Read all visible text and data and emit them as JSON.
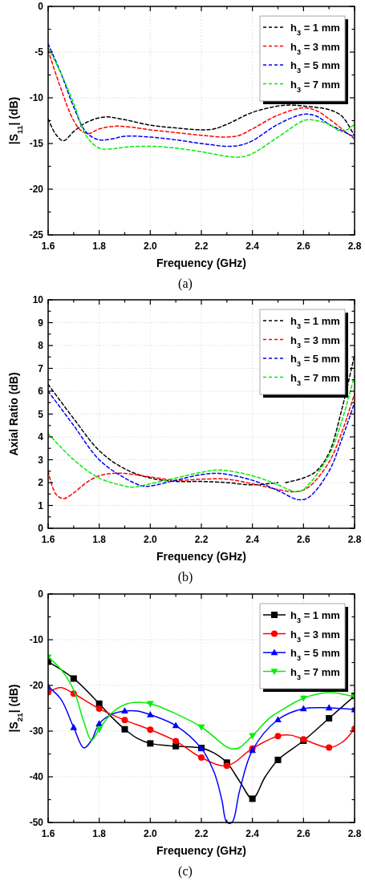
{
  "chart_data": [
    {
      "type": "line",
      "xlabel": "Frequency (GHz)",
      "ylabel": "|S$_{11}$| (dB)",
      "annotations": [
        "(a)"
      ],
      "line_style": "dashed",
      "grid": true,
      "legend": "top right",
      "xlim": [
        1.6,
        2.8
      ],
      "xticks": [
        1.6,
        {
          "value": 1.7,
          "label": null
        },
        1.8,
        {
          "value": 1.9,
          "label": null
        },
        {
          "value": 2,
          "label": "2.0"
        },
        {
          "value": 2.1,
          "label": null
        },
        2.2,
        {
          "value": 2.3,
          "label": null
        },
        2.4,
        {
          "value": 2.5,
          "label": null
        },
        2.6,
        {
          "value": 2.7,
          "label": null
        },
        2.8
      ],
      "ylim": [
        -25,
        0
      ],
      "yticks": [
        -25,
        {
          "value": -22.5,
          "label": null
        },
        -20,
        {
          "value": -17.5,
          "label": null
        },
        -15,
        {
          "value": -12.5,
          "label": null
        },
        -10,
        {
          "value": -7.5,
          "label": null
        },
        -5,
        {
          "value": -2.5,
          "label": null
        },
        0
      ],
      "series": [
        {
          "name": "h$_{3}$ = 1 mm",
          "color": "#000000",
          "x": [
            1.6,
            1.63,
            1.66,
            1.7,
            1.75,
            1.82,
            1.9,
            2.0,
            2.1,
            2.2,
            2.25,
            2.3,
            2.4,
            2.5,
            2.55,
            2.6,
            2.7,
            2.75,
            2.8
          ],
          "values": [
            -12.3,
            -14,
            -14.7,
            -13.7,
            -12.7,
            -12.1,
            -12.4,
            -13.0,
            -13.3,
            -13.5,
            -13.4,
            -12.9,
            -11.6,
            -10.9,
            -10.8,
            -10.9,
            -11.3,
            -12.0,
            -14.2
          ]
        },
        {
          "name": "h$_{3}$ = 3 mm",
          "color": "#ff0000",
          "x": [
            1.6,
            1.65,
            1.7,
            1.73,
            1.76,
            1.8,
            1.87,
            1.95,
            2.0,
            2.1,
            2.2,
            2.3,
            2.35,
            2.4,
            2.5,
            2.6,
            2.65,
            2.7,
            2.75,
            2.8
          ],
          "values": [
            -4.8,
            -9,
            -12.5,
            -13.6,
            -13.9,
            -13.4,
            -13.1,
            -13.3,
            -13.5,
            -13.8,
            -14.1,
            -14.3,
            -14.1,
            -13.4,
            -11.9,
            -11.1,
            -11.4,
            -12.3,
            -13.4,
            -14.5
          ]
        },
        {
          "name": "h$_{3}$ = 5 mm",
          "color": "#0000ff",
          "x": [
            1.6,
            1.65,
            1.7,
            1.75,
            1.8,
            1.85,
            1.9,
            2.0,
            2.1,
            2.2,
            2.3,
            2.35,
            2.4,
            2.5,
            2.6,
            2.65,
            2.7,
            2.75,
            2.8
          ],
          "values": [
            -4.1,
            -7.3,
            -11,
            -13.8,
            -14.6,
            -14.5,
            -14.2,
            -14.3,
            -14.6,
            -15.0,
            -15.3,
            -15.2,
            -14.7,
            -12.9,
            -11.8,
            -12.0,
            -12.9,
            -13.6,
            -14.3
          ]
        },
        {
          "name": "h$_{3}$ = 7 mm",
          "color": "#00ee00",
          "x": [
            1.6,
            1.65,
            1.7,
            1.75,
            1.8,
            1.85,
            1.9,
            2.0,
            2.1,
            2.2,
            2.3,
            2.35,
            2.4,
            2.5,
            2.6,
            2.63,
            2.7,
            2.75,
            2.8
          ],
          "values": [
            -4.5,
            -7.3,
            -10.6,
            -14.2,
            -15.5,
            -15.6,
            -15.4,
            -15.3,
            -15.5,
            -15.9,
            -16.4,
            -16.5,
            -16.1,
            -14.3,
            -12.5,
            -12.4,
            -12.9,
            -13.7,
            -12.9
          ]
        }
      ]
    },
    {
      "type": "line",
      "xlabel": "Frequency (GHz)",
      "ylabel": "Axial Ratio (dB)",
      "annotations": [
        "(b)"
      ],
      "line_style": "dashed",
      "grid": true,
      "legend": "top right",
      "xlim": [
        1.6,
        2.8
      ],
      "xticks": [
        1.6,
        {
          "value": 1.7,
          "label": null
        },
        1.8,
        {
          "value": 1.9,
          "label": null
        },
        {
          "value": 2,
          "label": "2.0"
        },
        {
          "value": 2.1,
          "label": null
        },
        2.2,
        {
          "value": 2.3,
          "label": null
        },
        2.4,
        {
          "value": 2.5,
          "label": null
        },
        2.6,
        {
          "value": 2.7,
          "label": null
        },
        2.8
      ],
      "ylim": [
        0,
        10
      ],
      "yticks": [
        0,
        {
          "value": 0.5,
          "label": null
        },
        1,
        {
          "value": 1.5,
          "label": null
        },
        2,
        {
          "value": 2.5,
          "label": null
        },
        3,
        {
          "value": 3.5,
          "label": null
        },
        4,
        {
          "value": 4.5,
          "label": null
        },
        5,
        {
          "value": 5.5,
          "label": null
        },
        6,
        {
          "value": 6.5,
          "label": null
        },
        7,
        {
          "value": 7.5,
          "label": null
        },
        8,
        {
          "value": 8.5,
          "label": null
        },
        9,
        {
          "value": 9.5,
          "label": null
        },
        10
      ],
      "series": [
        {
          "name": "h$_{3}$ = 1 mm",
          "color": "#000000",
          "x": [
            1.6,
            1.7,
            1.8,
            1.9,
            2.0,
            2.1,
            2.2,
            2.3,
            2.4,
            2.5,
            2.52,
            2.53,
            2.6,
            2.65,
            2.7,
            2.75,
            2.8
          ],
          "values": [
            6.3,
            4.8,
            3.4,
            2.6,
            2.2,
            2.05,
            2.05,
            2.0,
            1.9,
            2.0,
            null,
            2.0,
            2.2,
            2.5,
            3.3,
            5.2,
            7.6
          ]
        },
        {
          "name": "h$_{3}$ = 3 mm",
          "color": "#ff0000",
          "x": [
            1.6,
            1.63,
            1.66,
            1.7,
            1.75,
            1.8,
            1.85,
            1.9,
            2.0,
            2.1,
            2.2,
            2.3,
            2.4,
            2.5,
            2.57,
            2.62,
            2.7,
            2.75,
            2.8
          ],
          "values": [
            2.5,
            1.5,
            1.3,
            1.55,
            2.0,
            2.3,
            2.4,
            2.4,
            2.25,
            2.1,
            2.15,
            2.15,
            1.95,
            1.7,
            1.6,
            1.8,
            2.9,
            4.2,
            5.9
          ]
        },
        {
          "name": "h$_{3}$ = 5 mm",
          "color": "#0000ff",
          "x": [
            1.6,
            1.7,
            1.8,
            1.9,
            1.97,
            2.0,
            2.1,
            2.2,
            2.27,
            2.4,
            2.5,
            2.58,
            2.62,
            2.7,
            2.75,
            2.8
          ],
          "values": [
            6.0,
            4.5,
            3.0,
            2.2,
            1.85,
            1.85,
            2.1,
            2.35,
            2.4,
            2.1,
            1.65,
            1.25,
            1.35,
            2.5,
            3.9,
            5.5
          ]
        },
        {
          "name": "h$_{3}$ = 7 mm",
          "color": "#00ee00",
          "x": [
            1.6,
            1.7,
            1.8,
            1.9,
            1.93,
            2.0,
            2.1,
            2.2,
            2.27,
            2.4,
            2.5,
            2.57,
            2.6,
            2.7,
            2.75,
            2.8
          ],
          "values": [
            4.15,
            3.0,
            2.2,
            1.85,
            1.8,
            1.95,
            2.2,
            2.45,
            2.55,
            2.3,
            1.9,
            1.6,
            1.7,
            3.2,
            4.7,
            6.7
          ]
        }
      ]
    },
    {
      "type": "line",
      "xlabel": "Frequency (GHz)",
      "ylabel": "|S$_{21}$| (dB)",
      "annotations": [
        "(c)"
      ],
      "line_style": "solid",
      "grid": true,
      "legend": "top right",
      "xlim": [
        1.6,
        2.8
      ],
      "xticks": [
        1.6,
        {
          "value": 1.7,
          "label": null
        },
        1.8,
        {
          "value": 1.9,
          "label": null
        },
        {
          "value": 2,
          "label": "2.0"
        },
        {
          "value": 2.1,
          "label": null
        },
        2.2,
        {
          "value": 2.3,
          "label": null
        },
        2.4,
        {
          "value": 2.5,
          "label": null
        },
        2.6,
        {
          "value": 2.7,
          "label": null
        },
        2.8
      ],
      "ylim": [
        -50,
        0
      ],
      "yticks": [
        -50,
        {
          "value": -45,
          "label": null
        },
        -40,
        {
          "value": -35,
          "label": null
        },
        -30,
        {
          "value": -25,
          "label": null
        },
        -20,
        {
          "value": -15,
          "label": null
        },
        -10,
        {
          "value": -5,
          "label": null
        },
        0
      ],
      "series": [
        {
          "name": "h$_{3}$ = 1 mm",
          "color": "#000000",
          "x": [
            1.6,
            1.7,
            1.8,
            1.85,
            1.9,
            1.95,
            2.0,
            2.1,
            2.2,
            2.25,
            2.3,
            2.35,
            2.4,
            2.45,
            2.5,
            2.6,
            2.7,
            2.8
          ],
          "values": [
            -14.8,
            -18.5,
            -24,
            -27,
            -29.6,
            -31.6,
            -32.7,
            -33.3,
            -33.7,
            -34.8,
            -36.9,
            -41,
            -44.8,
            -40,
            -36.3,
            -32.1,
            -27.2,
            -22.3
          ]
        },
        {
          "type": "scatter",
          "color": "#000000",
          "marker": "square",
          "x": [
            1.6,
            1.7,
            1.8,
            1.9,
            2.0,
            2.1,
            2.2,
            2.3,
            2.4,
            2.5,
            2.6,
            2.7,
            2.8
          ],
          "values": [
            -14.8,
            -18.5,
            -24,
            -29.6,
            -32.7,
            -33.3,
            -33.7,
            -36.9,
            -44.8,
            -36.3,
            -32.1,
            -27.2,
            -22.3
          ]
        },
        {
          "name": "h$_{3}$ = 3 mm",
          "color": "#ff0000",
          "x": [
            1.6,
            1.65,
            1.7,
            1.8,
            1.9,
            2.0,
            2.1,
            2.2,
            2.3,
            2.4,
            2.5,
            2.55,
            2.6,
            2.7,
            2.75,
            2.8
          ],
          "values": [
            -21.5,
            -20.5,
            -21.8,
            -25.1,
            -27.6,
            -29.7,
            -32.2,
            -35.8,
            -37.6,
            -33.8,
            -31.1,
            -30.9,
            -31.8,
            -33.6,
            -32.5,
            -29.5
          ]
        },
        {
          "type": "scatter",
          "color": "#ff0000",
          "marker": "circle",
          "x": [
            1.6,
            1.7,
            1.8,
            1.9,
            2.0,
            2.1,
            2.2,
            2.3,
            2.4,
            2.5,
            2.6,
            2.7,
            2.8
          ],
          "values": [
            -21.5,
            -21.8,
            -25.1,
            -27.6,
            -29.7,
            -32.2,
            -35.8,
            -37.6,
            -33.8,
            -31.1,
            -31.8,
            -33.6,
            -29.5
          ]
        },
        {
          "name": "h$_{3}$ = 5 mm",
          "color": "#0000ff",
          "x": [
            1.6,
            1.65,
            1.7,
            1.74,
            1.77,
            1.8,
            1.85,
            1.9,
            1.95,
            2.0,
            2.1,
            2.2,
            2.25,
            2.28,
            2.3,
            2.32,
            2.35,
            2.4,
            2.5,
            2.6,
            2.7,
            2.8
          ],
          "values": [
            -20.3,
            -23,
            -29.2,
            -33.7,
            -32,
            -28.4,
            -26.3,
            -25.6,
            -25.6,
            -26.4,
            -28.8,
            -33.8,
            -39,
            -45,
            -50,
            -50,
            -43,
            -34.2,
            -27.5,
            -25.1,
            -24.9,
            -25.3
          ]
        },
        {
          "type": "scatter",
          "color": "#0000ff",
          "marker": "triangle",
          "x": [
            1.6,
            1.7,
            1.8,
            1.9,
            2.0,
            2.1,
            2.2,
            2.3,
            2.4,
            2.5,
            2.6,
            2.7,
            2.8
          ],
          "values": [
            -20.3,
            -29.2,
            -28.4,
            -25.6,
            -26.4,
            -28.8,
            -33.8,
            null,
            -34.2,
            -27.5,
            -25.1,
            -24.9,
            -25.3
          ]
        },
        {
          "name": "h$_{3}$ = 7 mm",
          "color": "#00ee00",
          "x": [
            1.6,
            1.65,
            1.7,
            1.74,
            1.77,
            1.8,
            1.85,
            1.9,
            1.95,
            2.0,
            2.1,
            2.2,
            2.3,
            2.32,
            2.35,
            2.4,
            2.47,
            2.5,
            2.6,
            2.7,
            2.8
          ],
          "values": [
            -13.8,
            -16.5,
            -21,
            -28,
            -32,
            -29.6,
            -26,
            -24.2,
            -23.7,
            -24,
            -26.2,
            -29.1,
            -33.5,
            -33.9,
            -33.6,
            -31,
            -27,
            -25.9,
            -22.8,
            -21.6,
            -22.5
          ]
        },
        {
          "type": "scatter",
          "color": "#00ee00",
          "marker": "triangle-down",
          "x": [
            1.6,
            1.8,
            2.0,
            2.2,
            2.4,
            2.6,
            2.8
          ],
          "values": [
            -13.8,
            -29.6,
            -24.0,
            -29.1,
            -31.0,
            -22.8,
            -22.5
          ]
        }
      ]
    }
  ]
}
